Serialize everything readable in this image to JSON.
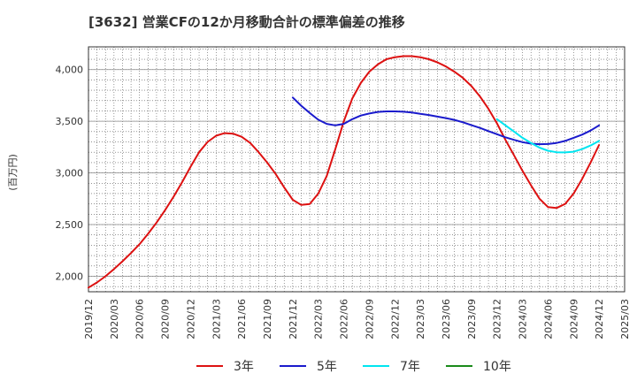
{
  "chart_data": {
    "type": "line",
    "title": "[3632]  営業CFの12か月移動合計の標準偏差の推移",
    "ylabel": "(百万円)",
    "xlabel": "",
    "ylim": [
      1850,
      4220
    ],
    "yticks": [
      2000,
      2500,
      3000,
      3500,
      4000
    ],
    "ytick_labels": [
      "2,000",
      "2,500",
      "3,000",
      "3,500",
      "4,000"
    ],
    "x_ticks": [
      "2019/12",
      "2020/03",
      "2020/06",
      "2020/09",
      "2020/12",
      "2021/03",
      "2021/06",
      "2021/09",
      "2021/12",
      "2022/03",
      "2022/06",
      "2022/09",
      "2022/12",
      "2023/03",
      "2023/06",
      "2023/09",
      "2023/12",
      "2024/03",
      "2024/06",
      "2024/09",
      "2024/12",
      "2025/03"
    ],
    "x_start": "2019/12",
    "x_end": "2025/03",
    "grid": true,
    "legend_position": "bottom",
    "series": [
      {
        "name": "3年",
        "color": "#dd1111",
        "x": [
          "2019/12",
          "2020/01",
          "2020/02",
          "2020/03",
          "2020/04",
          "2020/05",
          "2020/06",
          "2020/07",
          "2020/08",
          "2020/09",
          "2020/10",
          "2020/11",
          "2020/12",
          "2021/01",
          "2021/02",
          "2021/03",
          "2021/04",
          "2021/05",
          "2021/06",
          "2021/07",
          "2021/08",
          "2021/09",
          "2021/10",
          "2021/11",
          "2021/12",
          "2022/01",
          "2022/02",
          "2022/03",
          "2022/04",
          "2022/05",
          "2022/06",
          "2022/07",
          "2022/08",
          "2022/09",
          "2022/10",
          "2022/11",
          "2022/12",
          "2023/01",
          "2023/02",
          "2023/03",
          "2023/04",
          "2023/05",
          "2023/06",
          "2023/07",
          "2023/08",
          "2023/09",
          "2023/10",
          "2023/11",
          "2023/12",
          "2024/01",
          "2024/02",
          "2024/03",
          "2024/04",
          "2024/05",
          "2024/06",
          "2024/07",
          "2024/08",
          "2024/09",
          "2024/10",
          "2024/11",
          "2024/12"
        ],
        "values": [
          1890,
          1940,
          2000,
          2070,
          2145,
          2225,
          2310,
          2410,
          2520,
          2640,
          2770,
          2910,
          3060,
          3200,
          3300,
          3360,
          3385,
          3380,
          3350,
          3290,
          3200,
          3100,
          2990,
          2860,
          2740,
          2690,
          2700,
          2800,
          2970,
          3230,
          3500,
          3720,
          3870,
          3980,
          4050,
          4100,
          4120,
          4130,
          4130,
          4120,
          4100,
          4070,
          4030,
          3980,
          3920,
          3840,
          3740,
          3620,
          3480,
          3320,
          3170,
          3020,
          2880,
          2750,
          2670,
          2660,
          2700,
          2800,
          2940,
          3100,
          3270
        ]
      },
      {
        "name": "5年",
        "color": "#1a1acc",
        "x": [
          "2021/12",
          "2022/01",
          "2022/02",
          "2022/03",
          "2022/04",
          "2022/05",
          "2022/06",
          "2022/07",
          "2022/08",
          "2022/09",
          "2022/10",
          "2022/11",
          "2022/12",
          "2023/01",
          "2023/02",
          "2023/03",
          "2023/04",
          "2023/05",
          "2023/06",
          "2023/07",
          "2023/08",
          "2023/09",
          "2023/10",
          "2023/11",
          "2023/12",
          "2024/01",
          "2024/02",
          "2024/03",
          "2024/04",
          "2024/05",
          "2024/06",
          "2024/07",
          "2024/08",
          "2024/09",
          "2024/10",
          "2024/11",
          "2024/12"
        ],
        "values": [
          3730,
          3650,
          3580,
          3515,
          3475,
          3460,
          3475,
          3520,
          3555,
          3575,
          3590,
          3595,
          3595,
          3592,
          3585,
          3572,
          3560,
          3545,
          3530,
          3513,
          3490,
          3462,
          3435,
          3405,
          3375,
          3345,
          3320,
          3298,
          3283,
          3278,
          3280,
          3290,
          3310,
          3340,
          3370,
          3410,
          3460
        ]
      },
      {
        "name": "7年",
        "color": "#00e5f0",
        "x": [
          "2023/12",
          "2024/01",
          "2024/02",
          "2024/03",
          "2024/04",
          "2024/05",
          "2024/06",
          "2024/07",
          "2024/08",
          "2024/09",
          "2024/10",
          "2024/11",
          "2024/12"
        ],
        "values": [
          3520,
          3460,
          3400,
          3340,
          3290,
          3245,
          3215,
          3200,
          3198,
          3205,
          3230,
          3265,
          3310
        ]
      },
      {
        "name": "10年",
        "color": "#1a8a1a",
        "x": [],
        "values": []
      }
    ]
  }
}
